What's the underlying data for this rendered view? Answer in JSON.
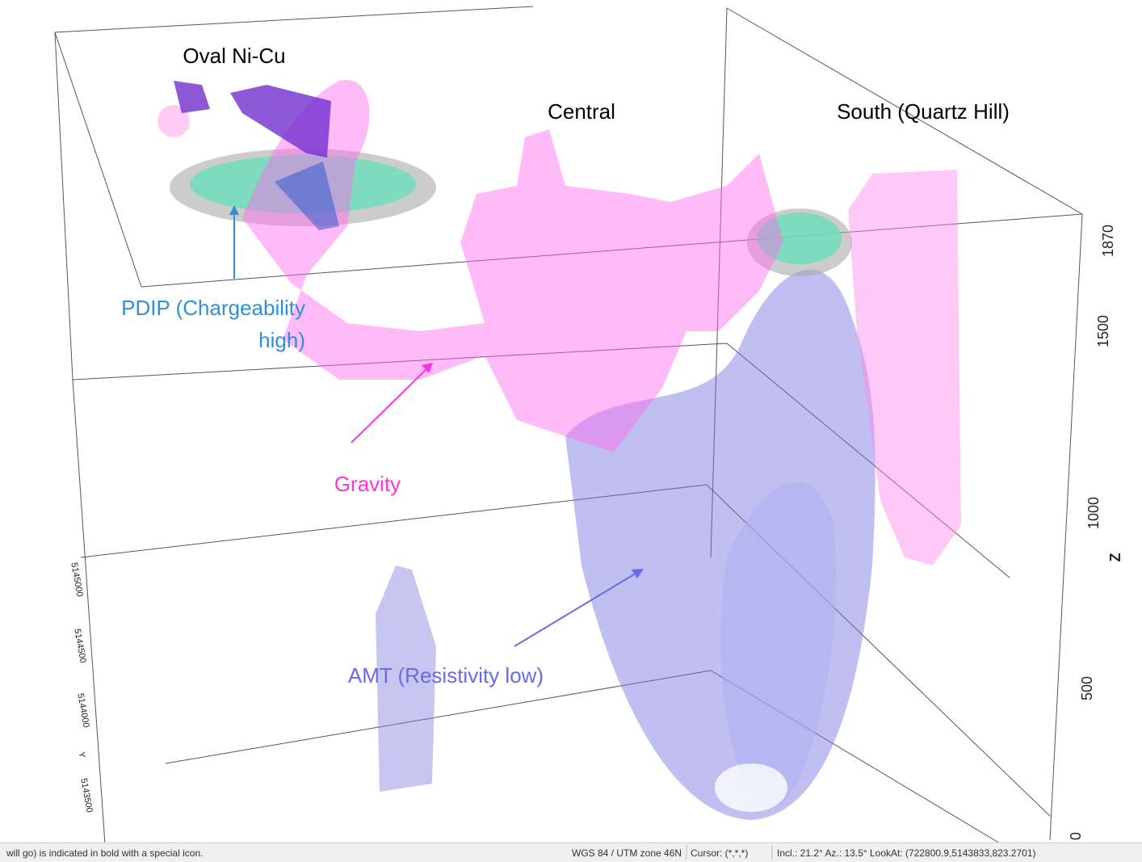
{
  "labels": {
    "oval": "Oval Ni-Cu",
    "central": "Central",
    "south": "South (Quartz Hill)",
    "pdip_line1": "PDIP (Chargeability",
    "pdip_line2": "high)",
    "gravity": "Gravity",
    "amt": "AMT (Resistivity low)"
  },
  "z_axis": {
    "title": "Z",
    "ticks": [
      "1870",
      "1500",
      "1000",
      "500",
      "0"
    ]
  },
  "y_axis": {
    "title": "Y",
    "ticks": [
      "5145000",
      "5144500",
      "5144000",
      "5143500"
    ]
  },
  "status_bar": {
    "message": "will go) is indicated in bold with a special icon.",
    "crs": "WGS 84 / UTM zone 46N",
    "cursor": "Cursor: (*,*,*)",
    "view": "Incl.: 21.2° Az.: 13.5° LookAt: (722800.9,5143833,823.2701)"
  }
}
